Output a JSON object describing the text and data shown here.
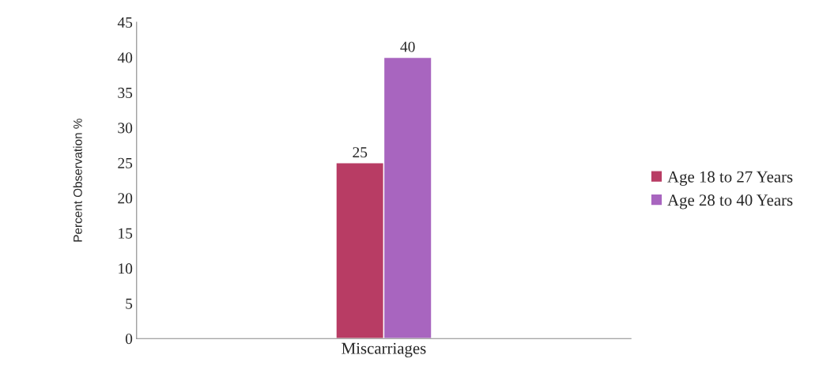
{
  "chart_data": {
    "type": "bar",
    "ylabel": "Percent Observation %",
    "categories": [
      null,
      "Miscarriages",
      null
    ],
    "series": [
      {
        "name": "Age 18 to 27 Years",
        "color": "#b83c64",
        "values": [
          null,
          25,
          null
        ]
      },
      {
        "name": "Age 28 to 40 Years",
        "color": "#a865bf",
        "values": [
          null,
          40,
          null
        ]
      }
    ],
    "ylim": [
      0,
      45
    ],
    "yticks": [
      0,
      5,
      10,
      15,
      20,
      25,
      30,
      35,
      40,
      45
    ],
    "data_labels": true,
    "grid": false,
    "legend": "right"
  }
}
